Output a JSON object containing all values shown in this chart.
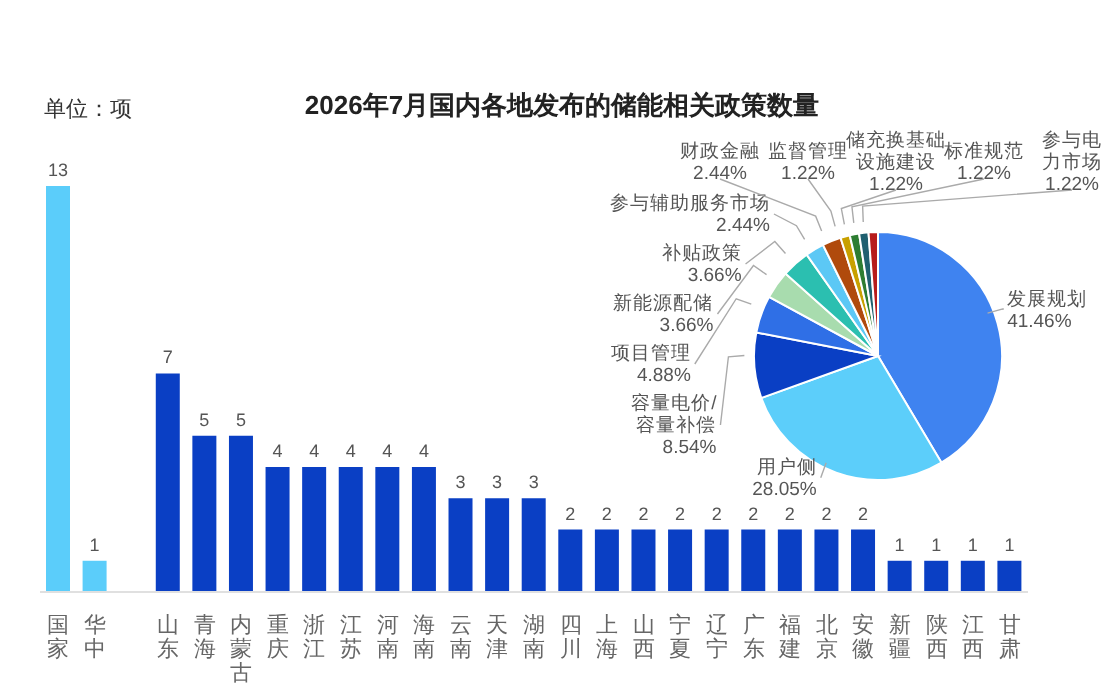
{
  "chart_data": [
    {
      "type": "bar",
      "title": "2026年7月国内各地发布的储能相关政策数量",
      "annotations": [
        "单位：项"
      ],
      "categories": [
        "国家",
        "华中",
        null,
        "山东",
        "青海",
        "内蒙古",
        "重庆",
        "浙江",
        "江苏",
        "河南",
        "海南",
        "云南",
        "天津",
        "湖南",
        "四川",
        "上海",
        "山西",
        "宁夏",
        "辽宁",
        "广东",
        "福建",
        "北京",
        "安徽",
        "新疆",
        "陕西",
        "江西",
        "甘肃"
      ],
      "values": [
        13,
        1,
        null,
        7,
        5,
        5,
        4,
        4,
        4,
        4,
        4,
        3,
        3,
        3,
        2,
        2,
        2,
        2,
        2,
        2,
        2,
        2,
        2,
        1,
        1,
        1,
        1
      ],
      "colors": [
        "#5bcdfa",
        "#5bcdfa",
        "#0a3fc4",
        "#0a3fc4",
        "#0a3fc4",
        "#0a3fc4",
        "#0a3fc4",
        "#0a3fc4",
        "#0a3fc4",
        "#0a3fc4",
        "#0a3fc4",
        "#0a3fc4",
        "#0a3fc4",
        "#0a3fc4",
        "#0a3fc4",
        "#0a3fc4",
        "#0a3fc4",
        "#0a3fc4",
        "#0a3fc4",
        "#0a3fc4",
        "#0a3fc4",
        "#0a3fc4",
        "#0a3fc4",
        "#0a3fc4",
        "#0a3fc4",
        "#0a3fc4",
        "#0a3fc4"
      ],
      "data_labels": true
    },
    {
      "type": "pie",
      "categories": [
        "发展规划",
        "用户侧",
        "容量电价/容量补偿",
        "项目管理",
        "新能源配储",
        "补贴政策",
        "参与辅助服务市场",
        "财政金融",
        "监督管理",
        "储充换基础设施建设",
        "标准规范",
        "参与电力市场"
      ],
      "values": [
        41.46,
        28.05,
        8.54,
        4.88,
        3.66,
        3.66,
        2.44,
        2.44,
        1.22,
        1.22,
        1.22,
        1.22
      ],
      "value_labels": [
        "41.46%",
        "28.05%",
        "8.54%",
        "4.88%",
        "3.66%",
        "3.66%",
        "2.44%",
        "2.44%",
        "1.22%",
        "1.22%",
        "1.22%",
        "1.22%"
      ],
      "colors": [
        "#3f83f0",
        "#5ccefa",
        "#0a3fc4",
        "#2f6fe6",
        "#a8dcae",
        "#2bbfb0",
        "#5cc8f5",
        "#b04a0c",
        "#c8a000",
        "#2e7d32",
        "#1f6070",
        "#b71c1c"
      ]
    }
  ]
}
